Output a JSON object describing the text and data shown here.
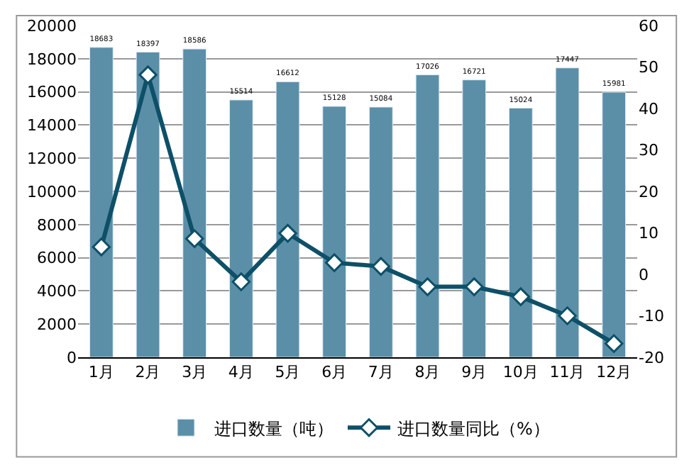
{
  "chart_data": {
    "type": "bar",
    "categories": [
      "1月",
      "2月",
      "3月",
      "4月",
      "5月",
      "6月",
      "7月",
      "8月",
      "9月",
      "10月",
      "11月",
      "12月"
    ],
    "series": [
      {
        "name": "进口数量（吨）",
        "color": "#5b8fa8",
        "values": [
          18683,
          18397,
          18586,
          15514,
          16612,
          15128,
          15084,
          17026,
          16721,
          15024,
          17447,
          15981
        ],
        "value_labels": [
          "18683",
          "18397",
          "18586",
          "15514",
          "16612",
          "15128",
          "15084",
          "17026",
          "16721",
          "15024",
          "17447",
          "15981"
        ]
      },
      {
        "name": "进口数量同比（%）",
        "type": "line",
        "axis": "y2",
        "color": "#0d5068",
        "marker": "diamond",
        "values": [
          6.6,
          48.1,
          8.6,
          -1.8,
          9.9,
          2.8,
          1.9,
          -3.0,
          -3.0,
          -5.4,
          -10.0,
          -16.7
        ]
      }
    ],
    "ylim": [
      0,
      20000
    ],
    "yticks": [
      0,
      2000,
      4000,
      6000,
      8000,
      10000,
      12000,
      14000,
      16000,
      18000,
      20000
    ],
    "y2lim": [
      -20,
      60
    ],
    "y2ticks": [
      -20,
      -10,
      0,
      10,
      20,
      30,
      40,
      50,
      60
    ],
    "grid": "y",
    "legend": "bottom"
  }
}
